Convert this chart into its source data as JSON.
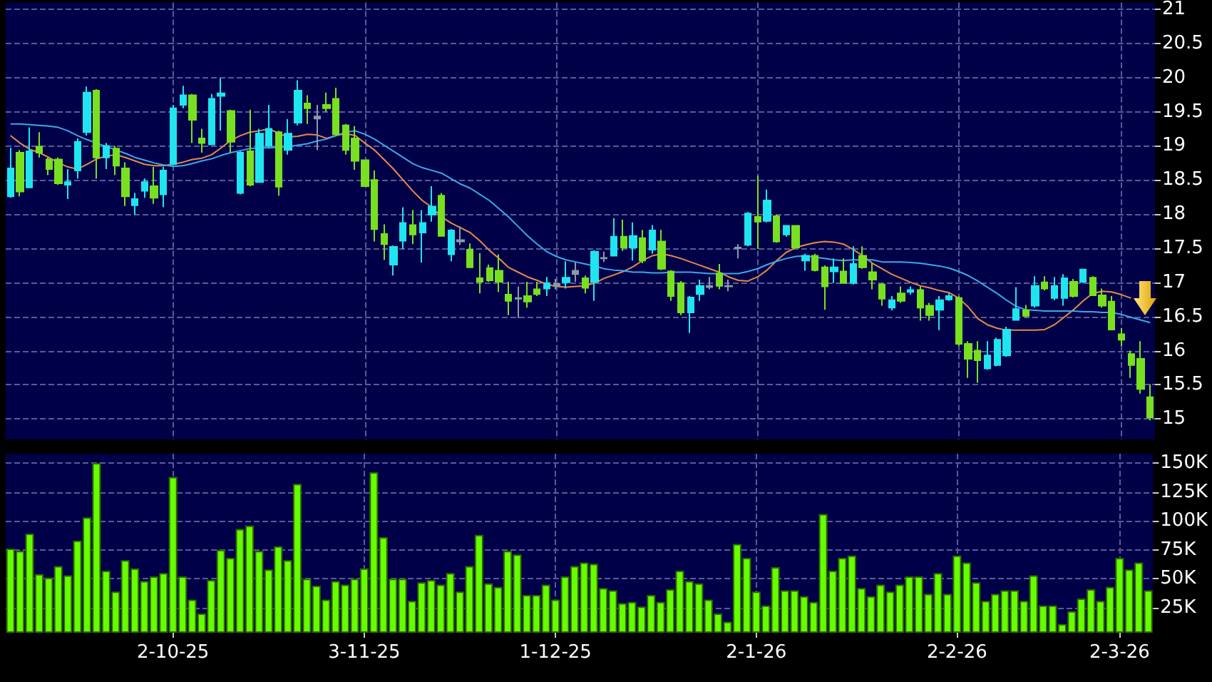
{
  "chart_data": [
    {
      "type": "candlestick",
      "marker": "none",
      "grid": true,
      "tick_labels": "y",
      "categories": [
        null,
        null,
        null,
        null,
        null,
        null,
        null,
        null,
        null,
        null,
        null,
        null,
        null,
        null,
        null,
        null,
        null,
        null,
        null,
        null,
        null,
        null,
        null,
        null,
        null,
        null,
        null,
        null,
        null,
        null,
        null,
        null,
        null,
        null,
        null,
        null,
        null,
        null,
        null,
        null,
        null,
        null,
        null,
        null,
        null,
        null,
        null,
        null,
        null,
        null,
        null,
        null,
        null,
        null,
        null,
        null,
        null,
        null,
        null,
        null,
        null,
        null,
        null,
        null,
        null,
        null,
        null,
        null,
        null,
        null,
        null,
        null,
        null,
        null,
        null,
        null,
        null,
        null,
        null,
        null,
        null,
        null,
        null,
        null,
        null,
        null,
        null,
        null,
        null,
        null,
        null,
        null,
        null,
        null,
        null,
        null,
        null,
        null,
        null,
        null,
        null,
        null,
        null,
        null,
        null,
        null,
        null,
        null,
        null,
        null,
        null,
        null,
        null,
        null,
        null,
        null,
        null,
        null,
        null,
        null
      ],
      "ohlc": [
        [
          18.26,
          18.97,
          18.24,
          18.67
        ],
        [
          18.9,
          18.94,
          18.26,
          18.33
        ],
        [
          18.39,
          19.27,
          18.38,
          18.92
        ],
        [
          18.99,
          19.2,
          18.83,
          18.9
        ],
        [
          18.8,
          18.83,
          18.57,
          18.66
        ],
        [
          18.8,
          18.83,
          18.43,
          18.45
        ],
        [
          18.43,
          18.66,
          18.22,
          18.47
        ],
        [
          18.64,
          19.11,
          18.52,
          19.06
        ],
        [
          19.2,
          19.87,
          19.15,
          19.78
        ],
        [
          19.81,
          19.83,
          18.52,
          18.83
        ],
        [
          18.83,
          19.04,
          18.66,
          19.0
        ],
        [
          18.96,
          19.0,
          18.57,
          18.71
        ],
        [
          18.67,
          18.76,
          18.12,
          18.26
        ],
        [
          18.13,
          18.31,
          17.99,
          18.22
        ],
        [
          18.34,
          18.52,
          18.24,
          18.47
        ],
        [
          18.41,
          18.69,
          18.15,
          18.24
        ],
        [
          18.29,
          18.69,
          18.1,
          18.64
        ],
        [
          18.73,
          19.6,
          18.72,
          19.55
        ],
        [
          19.6,
          19.88,
          19.55,
          19.74
        ],
        [
          19.74,
          19.76,
          19.04,
          19.38
        ],
        [
          19.11,
          19.25,
          18.9,
          19.04
        ],
        [
          19.02,
          19.76,
          19.01,
          19.69
        ],
        [
          19.73,
          19.99,
          19.22,
          19.77
        ],
        [
          19.51,
          19.53,
          18.9,
          19.06
        ],
        [
          18.31,
          18.92,
          18.29,
          18.9
        ],
        [
          18.92,
          19.53,
          18.41,
          18.43
        ],
        [
          18.47,
          19.25,
          18.47,
          19.18
        ],
        [
          19.0,
          19.6,
          18.97,
          19.25
        ],
        [
          19.2,
          19.22,
          18.27,
          18.4
        ],
        [
          18.94,
          19.39,
          18.87,
          19.18
        ],
        [
          19.34,
          19.96,
          19.3,
          19.81
        ],
        [
          19.62,
          19.74,
          19.32,
          19.55
        ],
        [
          19.4,
          19.6,
          18.94,
          19.43
        ],
        [
          19.6,
          19.78,
          19.5,
          19.55
        ],
        [
          19.69,
          19.85,
          19.15,
          19.17
        ],
        [
          19.3,
          19.32,
          18.87,
          18.94
        ],
        [
          19.11,
          19.29,
          18.65,
          18.78
        ],
        [
          18.79,
          18.8,
          18.41,
          18.41
        ],
        [
          18.5,
          18.64,
          17.6,
          17.78
        ],
        [
          17.71,
          17.85,
          17.33,
          17.56
        ],
        [
          17.26,
          17.54,
          17.1,
          17.52
        ],
        [
          17.61,
          18.1,
          17.49,
          17.87
        ],
        [
          17.84,
          18.06,
          17.56,
          17.7
        ],
        [
          17.73,
          18.06,
          17.29,
          17.87
        ],
        [
          17.99,
          18.41,
          17.89,
          18.11
        ],
        [
          18.27,
          18.31,
          17.68,
          17.68
        ],
        [
          17.41,
          17.78,
          17.31,
          17.76
        ],
        [
          17.6,
          17.82,
          17.55,
          17.62
        ],
        [
          17.48,
          17.57,
          17.21,
          17.22
        ],
        [
          17.06,
          17.43,
          16.84,
          17.01
        ],
        [
          17.21,
          17.26,
          17.01,
          17.03
        ],
        [
          17.17,
          17.41,
          16.86,
          17.01
        ],
        [
          16.82,
          17.01,
          16.52,
          16.73
        ],
        [
          16.76,
          16.94,
          16.48,
          16.77
        ],
        [
          16.8,
          17.01,
          16.63,
          16.72
        ],
        [
          16.9,
          17.01,
          16.8,
          16.83
        ],
        [
          16.91,
          17.08,
          16.8,
          16.99
        ],
        [
          16.95,
          17.05,
          16.9,
          16.98
        ],
        [
          17.0,
          17.31,
          16.91,
          17.07
        ],
        [
          17.12,
          17.29,
          17.01,
          17.17
        ],
        [
          17.06,
          17.1,
          16.84,
          16.92
        ],
        [
          17.01,
          17.47,
          16.73,
          17.45
        ],
        [
          17.35,
          17.45,
          17.3,
          17.36
        ],
        [
          17.39,
          17.94,
          17.39,
          17.67
        ],
        [
          17.67,
          17.92,
          17.46,
          17.51
        ],
        [
          17.51,
          17.88,
          17.32,
          17.68
        ],
        [
          17.65,
          17.77,
          17.28,
          17.32
        ],
        [
          17.48,
          17.84,
          17.42,
          17.76
        ],
        [
          17.6,
          17.77,
          17.18,
          17.2
        ],
        [
          17.16,
          17.18,
          16.73,
          16.8
        ],
        [
          16.99,
          17.02,
          16.52,
          16.56
        ],
        [
          16.56,
          16.8,
          16.26,
          16.78
        ],
        [
          16.83,
          17.04,
          16.73,
          16.95
        ],
        [
          16.95,
          17.08,
          16.9,
          16.93
        ],
        [
          17.13,
          17.27,
          16.9,
          16.95
        ],
        [
          16.95,
          17.04,
          16.87,
          16.94
        ],
        [
          17.5,
          17.56,
          17.35,
          17.51
        ],
        [
          17.55,
          18.03,
          17.53,
          18.01
        ],
        [
          17.96,
          18.56,
          17.49,
          17.89
        ],
        [
          17.9,
          18.36,
          17.88,
          18.2
        ],
        [
          17.97,
          17.99,
          17.58,
          17.6
        ],
        [
          17.7,
          17.84,
          17.67,
          17.83
        ],
        [
          17.83,
          17.83,
          17.5,
          17.51
        ],
        [
          17.32,
          17.42,
          17.17,
          17.39
        ],
        [
          17.39,
          17.42,
          17.16,
          17.18
        ],
        [
          17.22,
          17.25,
          16.6,
          16.94
        ],
        [
          17.16,
          17.35,
          16.99,
          17.22
        ],
        [
          17.16,
          17.35,
          16.99,
          16.99
        ],
        [
          16.99,
          17.53,
          16.97,
          17.27
        ],
        [
          17.39,
          17.53,
          17.2,
          17.22
        ],
        [
          17.15,
          17.28,
          16.9,
          17.04
        ],
        [
          16.97,
          16.99,
          16.66,
          16.76
        ],
        [
          16.63,
          16.8,
          16.59,
          16.74
        ],
        [
          16.84,
          16.94,
          16.7,
          16.73
        ],
        [
          16.86,
          16.94,
          16.82,
          16.89
        ],
        [
          16.89,
          16.94,
          16.44,
          16.63
        ],
        [
          16.66,
          16.7,
          16.44,
          16.52
        ],
        [
          16.6,
          16.8,
          16.3,
          16.74
        ],
        [
          16.75,
          16.84,
          16.73,
          16.8
        ],
        [
          16.77,
          16.8,
          16.07,
          16.1
        ],
        [
          16.1,
          16.14,
          15.6,
          15.88
        ],
        [
          16.0,
          16.14,
          15.53,
          15.86
        ],
        [
          15.74,
          16.14,
          15.72,
          15.93
        ],
        [
          15.79,
          16.19,
          15.77,
          16.16
        ],
        [
          15.93,
          16.35,
          15.91,
          16.31
        ],
        [
          16.45,
          16.93,
          16.44,
          16.61
        ],
        [
          16.59,
          16.67,
          16.49,
          16.51
        ],
        [
          16.66,
          17.09,
          16.63,
          16.95
        ],
        [
          17.0,
          17.09,
          16.88,
          16.91
        ],
        [
          16.77,
          17.08,
          16.74,
          16.95
        ],
        [
          16.77,
          17.12,
          16.66,
          17.06
        ],
        [
          17.01,
          17.05,
          16.78,
          16.8
        ],
        [
          17.01,
          17.19,
          16.99,
          17.19
        ],
        [
          17.07,
          17.09,
          16.8,
          16.81
        ],
        [
          16.81,
          16.91,
          16.63,
          16.66
        ],
        [
          16.72,
          16.8,
          16.3,
          16.31
        ],
        [
          16.24,
          16.33,
          16.07,
          16.16
        ],
        [
          15.95,
          16.0,
          15.6,
          15.79
        ],
        [
          15.88,
          16.14,
          15.37,
          15.44
        ],
        [
          15.32,
          15.51,
          14.98,
          15.02
        ]
      ],
      "colors": [
        "#20e4f0",
        "#78e020",
        "#20e4f0",
        "#78e020",
        "#78e020",
        "#78e020",
        "#20e4f0",
        "#20e4f0",
        "#20e4f0",
        "#78e020",
        "#20e4f0",
        "#78e020",
        "#78e020",
        "#20e4f0",
        "#20e4f0",
        "#78e020",
        "#20e4f0",
        "#20e4f0",
        "#20e4f0",
        "#78e020",
        "#78e020",
        "#20e4f0",
        "#20e4f0",
        "#78e020",
        "#20e4f0",
        "#78e020",
        "#20e4f0",
        "#20e4f0",
        "#78e020",
        "#20e4f0",
        "#20e4f0",
        "#78e020",
        "#8a9aa8",
        "#78e020",
        "#78e020",
        "#78e020",
        "#78e020",
        "#78e020",
        "#78e020",
        "#78e020",
        "#20e4f0",
        "#20e4f0",
        "#78e020",
        "#20e4f0",
        "#20e4f0",
        "#78e020",
        "#20e4f0",
        "#8a9aa8",
        "#78e020",
        "#78e020",
        "#78e020",
        "#78e020",
        "#78e020",
        "#8a9aa8",
        "#78e020",
        "#78e020",
        "#20e4f0",
        "#8a9aa8",
        "#20e4f0",
        "#8a9aa8",
        "#78e020",
        "#20e4f0",
        "#8a9aa8",
        "#20e4f0",
        "#78e020",
        "#20e4f0",
        "#78e020",
        "#20e4f0",
        "#78e020",
        "#78e020",
        "#78e020",
        "#20e4f0",
        "#20e4f0",
        "#8a9aa8",
        "#78e020",
        "#8a9aa8",
        "#8a9aa8",
        "#20e4f0",
        "#78e020",
        "#20e4f0",
        "#78e020",
        "#20e4f0",
        "#78e020",
        "#20e4f0",
        "#78e020",
        "#78e020",
        "#20e4f0",
        "#78e020",
        "#20e4f0",
        "#78e020",
        "#78e020",
        "#78e020",
        "#20e4f0",
        "#78e020",
        "#20e4f0",
        "#78e020",
        "#78e020",
        "#20e4f0",
        "#20e4f0",
        "#78e020",
        "#78e020",
        "#78e020",
        "#20e4f0",
        "#20e4f0",
        "#20e4f0",
        "#20e4f0",
        "#78e020",
        "#20e4f0",
        "#78e020",
        "#20e4f0",
        "#20e4f0",
        "#78e020",
        "#20e4f0",
        "#78e020",
        "#78e020",
        "#78e020",
        "#78e020",
        "#78e020",
        "#78e020",
        "#78e020"
      ],
      "series": [
        {
          "type": "line",
          "color": "#e8884a",
          "values": [
            19.15,
            19.04,
            18.95,
            18.9,
            18.83,
            18.75,
            18.69,
            18.66,
            18.73,
            18.81,
            18.85,
            18.87,
            18.83,
            18.78,
            18.73,
            18.71,
            18.71,
            18.73,
            18.76,
            18.8,
            18.82,
            18.87,
            18.97,
            19.08,
            19.15,
            19.2,
            19.22,
            19.25,
            19.18,
            19.13,
            19.14,
            19.17,
            19.16,
            19.11,
            19.15,
            19.18,
            19.15,
            19.04,
            18.94,
            18.8,
            18.66,
            18.5,
            18.34,
            18.2,
            18.1,
            17.96,
            17.87,
            17.8,
            17.73,
            17.61,
            17.47,
            17.35,
            17.22,
            17.15,
            17.08,
            17.03,
            16.97,
            16.94,
            16.93,
            16.94,
            16.95,
            16.99,
            17.06,
            17.11,
            17.16,
            17.23,
            17.32,
            17.39,
            17.42,
            17.39,
            17.35,
            17.3,
            17.25,
            17.2,
            17.15,
            17.08,
            17.03,
            17.02,
            17.08,
            17.18,
            17.32,
            17.44,
            17.51,
            17.55,
            17.58,
            17.6,
            17.59,
            17.56,
            17.48,
            17.39,
            17.28,
            17.2,
            17.12,
            17.06,
            17.0,
            16.95,
            16.92,
            16.88,
            16.85,
            16.77,
            16.64,
            16.47,
            16.38,
            16.33,
            16.3,
            16.3,
            16.3,
            16.3,
            16.31,
            16.38,
            16.49,
            16.6,
            16.73,
            16.84,
            16.87,
            16.86,
            16.82,
            16.77,
            null,
            null
          ]
        },
        {
          "type": "line",
          "color": "#3aa8e8",
          "values": [
            19.32,
            19.32,
            19.31,
            19.3,
            19.29,
            19.27,
            19.22,
            19.15,
            19.09,
            19.04,
            18.99,
            18.94,
            18.89,
            18.83,
            18.79,
            18.75,
            18.72,
            18.7,
            18.71,
            18.74,
            18.78,
            18.81,
            18.86,
            18.9,
            18.93,
            18.96,
            18.97,
            18.97,
            18.98,
            18.99,
            19.01,
            19.03,
            19.07,
            19.1,
            19.15,
            19.2,
            19.22,
            19.17,
            19.1,
            19.01,
            18.92,
            18.83,
            18.74,
            18.68,
            18.64,
            18.6,
            18.52,
            18.44,
            18.38,
            18.29,
            18.2,
            18.08,
            17.96,
            17.82,
            17.68,
            17.56,
            17.45,
            17.38,
            17.33,
            17.3,
            17.27,
            17.24,
            17.2,
            17.18,
            17.17,
            17.15,
            17.15,
            17.14,
            17.14,
            17.15,
            17.15,
            17.15,
            17.14,
            17.13,
            17.13,
            17.13,
            17.13,
            17.16,
            17.2,
            17.26,
            17.31,
            17.35,
            17.38,
            17.39,
            17.37,
            17.35,
            17.33,
            17.32,
            17.33,
            17.33,
            17.33,
            17.3,
            17.3,
            17.3,
            17.29,
            17.28,
            17.26,
            17.24,
            17.21,
            17.16,
            17.1,
            17.02,
            16.93,
            16.84,
            16.74,
            16.65,
            16.6,
            16.59,
            16.58,
            16.58,
            16.58,
            16.58,
            16.57,
            16.57,
            16.56,
            16.56,
            16.53,
            16.49,
            16.45,
            16.41
          ]
        }
      ],
      "ylim": [
        14.7,
        21.1
      ],
      "yticks": [
        15,
        15.5,
        16,
        16.5,
        17,
        17.5,
        18,
        18.5,
        19,
        19.5,
        20,
        20.5,
        21
      ]
    },
    {
      "type": "bar",
      "grid": true,
      "color": "#66ff00",
      "categories": [
        null,
        null,
        null,
        null,
        null,
        null,
        null,
        null,
        null,
        null,
        null,
        null,
        null,
        null,
        null,
        null,
        null,
        "2-10-25",
        null,
        null,
        null,
        null,
        null,
        null,
        null,
        null,
        null,
        null,
        null,
        null,
        null,
        null,
        null,
        null,
        null,
        null,
        null,
        "3-11-25",
        null,
        null,
        null,
        null,
        null,
        null,
        null,
        null,
        null,
        null,
        null,
        null,
        null,
        null,
        null,
        null,
        null,
        null,
        null,
        "1-12-25",
        null,
        null,
        null,
        null,
        null,
        null,
        null,
        null,
        null,
        null,
        null,
        null,
        null,
        null,
        null,
        null,
        null,
        null,
        null,
        null,
        "2-1-26",
        null,
        null,
        null,
        null,
        null,
        null,
        null,
        null,
        null,
        null,
        null,
        null,
        null,
        null,
        null,
        null,
        null,
        null,
        null,
        null,
        "2-2-26",
        null,
        null,
        null,
        null,
        null,
        null,
        null,
        null,
        null,
        null,
        null,
        null,
        null,
        null,
        null,
        null,
        "2-3-26",
        null,
        null,
        null
      ],
      "values": [
        76000,
        74000,
        89000,
        54000,
        51000,
        61000,
        53000,
        83000,
        103000,
        150000,
        57000,
        39000,
        66000,
        59000,
        48000,
        52000,
        55000,
        138000,
        52000,
        32000,
        20000,
        49000,
        75000,
        68000,
        93000,
        96000,
        74000,
        58000,
        78000,
        66000,
        132000,
        50000,
        44000,
        32000,
        48000,
        45000,
        50000,
        59000,
        142000,
        86000,
        50000,
        50000,
        31000,
        47000,
        49000,
        45000,
        55000,
        39000,
        61000,
        88000,
        46000,
        43000,
        74000,
        71000,
        36000,
        36000,
        45000,
        32000,
        52000,
        61000,
        64000,
        63000,
        42000,
        40000,
        29000,
        30000,
        26000,
        36000,
        30000,
        41000,
        57000,
        48000,
        46000,
        32000,
        20000,
        13000,
        80000,
        68000,
        39000,
        27000,
        60000,
        40000,
        40000,
        35000,
        30000,
        106000,
        57000,
        68000,
        70000,
        42000,
        35000,
        45000,
        39000,
        45000,
        52000,
        52000,
        37000,
        55000,
        37000,
        70000,
        64000,
        47000,
        31000,
        37000,
        40000,
        40000,
        31000,
        53000,
        27000,
        27000,
        11000,
        22000,
        33000,
        41000,
        31000,
        43000,
        68000,
        58000,
        64000,
        40000
      ],
      "ylim": [
        4000,
        158000
      ],
      "yticks": [
        {
          "value": 25000,
          "label": "25K"
        },
        {
          "value": 50000,
          "label": "50K"
        },
        {
          "value": 75000,
          "label": "75K"
        },
        {
          "value": 100000,
          "label": "100K"
        },
        {
          "value": 125000,
          "label": "125K"
        },
        {
          "value": 150000,
          "label": "150K"
        }
      ]
    }
  ]
}
